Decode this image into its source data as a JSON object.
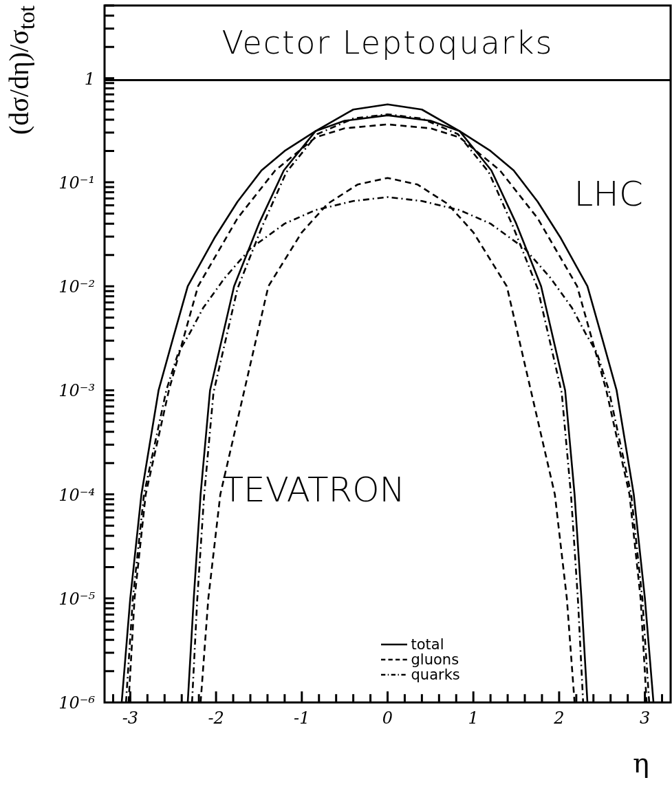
{
  "chart_data": {
    "type": "line",
    "title": "Vector Leptoquarks",
    "xlabel": "η",
    "ylabel": "(dσ/dη)/σ$_{tot}$",
    "log": "y",
    "legend": "bottom",
    "xlim": [
      -3.3,
      3.3
    ],
    "xticks": [
      {
        "value": -3.2,
        "label": null
      },
      -3,
      {
        "value": -2.8,
        "label": null
      },
      {
        "value": -2.6,
        "label": null
      },
      {
        "value": -2.4,
        "label": null
      },
      {
        "value": -2.2,
        "label": null
      },
      -2,
      {
        "value": -1.8,
        "label": null
      },
      {
        "value": -1.6,
        "label": null
      },
      {
        "value": -1.4,
        "label": null
      },
      {
        "value": -1.2,
        "label": null
      },
      -1,
      {
        "value": -0.8,
        "label": null
      },
      {
        "value": -0.6,
        "label": null
      },
      {
        "value": -0.4,
        "label": null
      },
      {
        "value": -0.2,
        "label": null
      },
      0,
      {
        "value": 0.2,
        "label": null
      },
      {
        "value": 0.4,
        "label": null
      },
      {
        "value": 0.6,
        "label": null
      },
      {
        "value": 0.8,
        "label": null
      },
      1,
      {
        "value": 1.2,
        "label": null
      },
      {
        "value": 1.4,
        "label": null
      },
      {
        "value": 1.6,
        "label": null
      },
      {
        "value": 1.8,
        "label": null
      },
      2,
      {
        "value": 2.2,
        "label": null
      },
      {
        "value": 2.4,
        "label": null
      },
      {
        "value": 2.6,
        "label": null
      },
      {
        "value": 2.8,
        "label": null
      },
      3,
      {
        "value": 3.2,
        "label": null
      }
    ],
    "ylim": [
      1e-06,
      5
    ],
    "yticks": [
      {
        "value": 1e-06,
        "label": "10⁻⁶"
      },
      {
        "value": 1e-05,
        "label": "10⁻⁵"
      },
      {
        "value": 0.0001,
        "label": "10⁻⁴"
      },
      {
        "value": 0.001,
        "label": "10⁻³"
      },
      {
        "value": 0.01,
        "label": "10⁻²"
      },
      {
        "value": 0.1,
        "label": "10⁻¹"
      },
      1
    ],
    "annotations": [
      "LHC",
      "TEVATRON"
    ],
    "series": [
      {
        "name": "total",
        "color": "#000000",
        "line_style": "solid",
        "x": [
          -3.1,
          -3.0,
          -2.87,
          -2.67,
          -2.5,
          -2.33,
          -2.02,
          -1.75,
          -1.47,
          -1.2,
          -0.84,
          -0.5,
          0,
          0.5,
          0.84,
          1.2,
          1.47,
          1.75,
          2.02,
          2.33,
          2.5,
          2.67,
          2.87,
          3.0,
          3.1
        ],
        "values": [
          1e-06,
          1e-05,
          0.0001,
          0.001,
          0.0032,
          0.01,
          0.029,
          0.065,
          0.13,
          0.2,
          0.31,
          0.39,
          0.44,
          0.39,
          0.31,
          0.2,
          0.13,
          0.065,
          0.029,
          0.01,
          0.0032,
          0.001,
          0.0001,
          1e-05,
          1e-06
        ]
      },
      {
        "name": "gluons",
        "color": "#000000",
        "line_style": "dashed",
        "x": [
          -3.02,
          -2.95,
          -2.82,
          -2.55,
          -2.21,
          -1.75,
          -1.31,
          -0.84,
          -0.5,
          0,
          0.5,
          0.84,
          1.31,
          1.75,
          2.21,
          2.55,
          2.82,
          2.95,
          3.02
        ],
        "values": [
          1e-06,
          1e-05,
          0.0001,
          0.001,
          0.01,
          0.045,
          0.13,
          0.27,
          0.33,
          0.36,
          0.33,
          0.27,
          0.13,
          0.045,
          0.01,
          0.001,
          0.0001,
          1e-05,
          1e-06
        ]
      },
      {
        "name": "quarks",
        "color": "#000000",
        "line_style": "dashdot",
        "x": [
          -3.05,
          -2.97,
          -2.84,
          -2.58,
          -2.44,
          -2.31,
          -2.15,
          -1.9,
          -1.6,
          -1.2,
          -0.84,
          -0.4,
          0,
          0.4,
          0.84,
          1.2,
          1.6,
          1.9,
          2.15,
          2.31,
          2.44,
          2.58,
          2.84,
          2.97,
          3.05
        ],
        "values": [
          1e-06,
          1e-05,
          0.0001,
          0.001,
          0.0023,
          0.0035,
          0.0062,
          0.012,
          0.023,
          0.04,
          0.054,
          0.066,
          0.072,
          0.066,
          0.054,
          0.04,
          0.023,
          0.012,
          0.0062,
          0.0035,
          0.0023,
          0.001,
          0.0001,
          1e-05,
          1e-06
        ]
      },
      {
        "color": "#000000",
        "line_style": "solid",
        "x": [
          -2.33,
          -2.26,
          -2.18,
          -2.07,
          -1.79,
          -1.5,
          -1.21,
          -0.84,
          -0.4,
          0,
          0.4,
          0.84,
          1.21,
          1.5,
          1.79,
          2.07,
          2.18,
          2.26,
          2.33
        ],
        "values": [
          1e-06,
          1e-05,
          0.0001,
          0.001,
          0.01,
          0.04,
          0.13,
          0.31,
          0.5,
          0.56,
          0.5,
          0.31,
          0.13,
          0.04,
          0.01,
          0.001,
          0.0001,
          1e-05,
          1e-06
        ]
      },
      {
        "color": "#000000",
        "line_style": "dashed",
        "x": [
          -2.18,
          -2.09,
          -1.95,
          -1.67,
          -1.39,
          -1.0,
          -0.7,
          -0.35,
          0,
          0.35,
          0.7,
          1.0,
          1.39,
          1.67,
          1.95,
          2.09,
          2.18
        ],
        "values": [
          1e-06,
          1e-05,
          0.0001,
          0.001,
          0.01,
          0.033,
          0.062,
          0.095,
          0.11,
          0.095,
          0.062,
          0.033,
          0.01,
          0.001,
          0.0001,
          1e-05,
          1e-06
        ]
      },
      {
        "color": "#000000",
        "line_style": "dashdot",
        "x": [
          -2.28,
          -2.22,
          -2.14,
          -2.03,
          -1.75,
          -1.46,
          -1.18,
          -0.82,
          -0.4,
          0,
          0.4,
          0.82,
          1.18,
          1.46,
          1.75,
          2.03,
          2.14,
          2.22,
          2.28
        ],
        "values": [
          1e-06,
          9.5e-06,
          9.5e-05,
          0.00095,
          0.0095,
          0.038,
          0.125,
          0.29,
          0.41,
          0.45,
          0.41,
          0.29,
          0.125,
          0.038,
          0.0095,
          0.00095,
          9.5e-05,
          9.5e-06,
          1e-06
        ]
      }
    ]
  }
}
